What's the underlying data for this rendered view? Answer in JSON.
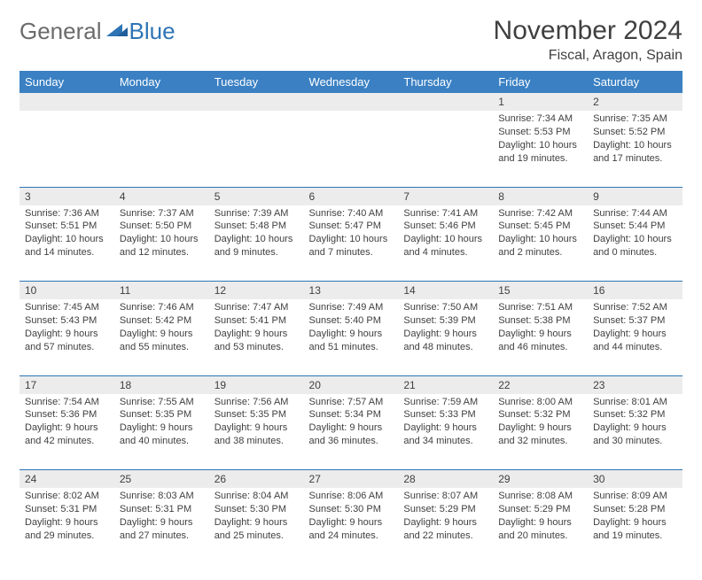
{
  "logo": {
    "text1": "General",
    "text2": "Blue"
  },
  "title": "November 2024",
  "location": "Fiscal, Aragon, Spain",
  "colors": {
    "header_bg": "#3a80c3",
    "header_text": "#ffffff",
    "border": "#2e74b5",
    "daynum_bg": "#ececec",
    "text": "#404040",
    "logo_gray": "#6b6b6b",
    "logo_blue": "#2e74b5"
  },
  "day_headers": [
    "Sunday",
    "Monday",
    "Tuesday",
    "Wednesday",
    "Thursday",
    "Friday",
    "Saturday"
  ],
  "weeks": [
    {
      "nums": [
        "",
        "",
        "",
        "",
        "",
        "1",
        "2"
      ],
      "cells": [
        {},
        {},
        {},
        {},
        {},
        {
          "sunrise": "Sunrise: 7:34 AM",
          "sunset": "Sunset: 5:53 PM",
          "day1": "Daylight: 10 hours",
          "day2": "and 19 minutes."
        },
        {
          "sunrise": "Sunrise: 7:35 AM",
          "sunset": "Sunset: 5:52 PM",
          "day1": "Daylight: 10 hours",
          "day2": "and 17 minutes."
        }
      ]
    },
    {
      "nums": [
        "3",
        "4",
        "5",
        "6",
        "7",
        "8",
        "9"
      ],
      "cells": [
        {
          "sunrise": "Sunrise: 7:36 AM",
          "sunset": "Sunset: 5:51 PM",
          "day1": "Daylight: 10 hours",
          "day2": "and 14 minutes."
        },
        {
          "sunrise": "Sunrise: 7:37 AM",
          "sunset": "Sunset: 5:50 PM",
          "day1": "Daylight: 10 hours",
          "day2": "and 12 minutes."
        },
        {
          "sunrise": "Sunrise: 7:39 AM",
          "sunset": "Sunset: 5:48 PM",
          "day1": "Daylight: 10 hours",
          "day2": "and 9 minutes."
        },
        {
          "sunrise": "Sunrise: 7:40 AM",
          "sunset": "Sunset: 5:47 PM",
          "day1": "Daylight: 10 hours",
          "day2": "and 7 minutes."
        },
        {
          "sunrise": "Sunrise: 7:41 AM",
          "sunset": "Sunset: 5:46 PM",
          "day1": "Daylight: 10 hours",
          "day2": "and 4 minutes."
        },
        {
          "sunrise": "Sunrise: 7:42 AM",
          "sunset": "Sunset: 5:45 PM",
          "day1": "Daylight: 10 hours",
          "day2": "and 2 minutes."
        },
        {
          "sunrise": "Sunrise: 7:44 AM",
          "sunset": "Sunset: 5:44 PM",
          "day1": "Daylight: 10 hours",
          "day2": "and 0 minutes."
        }
      ]
    },
    {
      "nums": [
        "10",
        "11",
        "12",
        "13",
        "14",
        "15",
        "16"
      ],
      "cells": [
        {
          "sunrise": "Sunrise: 7:45 AM",
          "sunset": "Sunset: 5:43 PM",
          "day1": "Daylight: 9 hours",
          "day2": "and 57 minutes."
        },
        {
          "sunrise": "Sunrise: 7:46 AM",
          "sunset": "Sunset: 5:42 PM",
          "day1": "Daylight: 9 hours",
          "day2": "and 55 minutes."
        },
        {
          "sunrise": "Sunrise: 7:47 AM",
          "sunset": "Sunset: 5:41 PM",
          "day1": "Daylight: 9 hours",
          "day2": "and 53 minutes."
        },
        {
          "sunrise": "Sunrise: 7:49 AM",
          "sunset": "Sunset: 5:40 PM",
          "day1": "Daylight: 9 hours",
          "day2": "and 51 minutes."
        },
        {
          "sunrise": "Sunrise: 7:50 AM",
          "sunset": "Sunset: 5:39 PM",
          "day1": "Daylight: 9 hours",
          "day2": "and 48 minutes."
        },
        {
          "sunrise": "Sunrise: 7:51 AM",
          "sunset": "Sunset: 5:38 PM",
          "day1": "Daylight: 9 hours",
          "day2": "and 46 minutes."
        },
        {
          "sunrise": "Sunrise: 7:52 AM",
          "sunset": "Sunset: 5:37 PM",
          "day1": "Daylight: 9 hours",
          "day2": "and 44 minutes."
        }
      ]
    },
    {
      "nums": [
        "17",
        "18",
        "19",
        "20",
        "21",
        "22",
        "23"
      ],
      "cells": [
        {
          "sunrise": "Sunrise: 7:54 AM",
          "sunset": "Sunset: 5:36 PM",
          "day1": "Daylight: 9 hours",
          "day2": "and 42 minutes."
        },
        {
          "sunrise": "Sunrise: 7:55 AM",
          "sunset": "Sunset: 5:35 PM",
          "day1": "Daylight: 9 hours",
          "day2": "and 40 minutes."
        },
        {
          "sunrise": "Sunrise: 7:56 AM",
          "sunset": "Sunset: 5:35 PM",
          "day1": "Daylight: 9 hours",
          "day2": "and 38 minutes."
        },
        {
          "sunrise": "Sunrise: 7:57 AM",
          "sunset": "Sunset: 5:34 PM",
          "day1": "Daylight: 9 hours",
          "day2": "and 36 minutes."
        },
        {
          "sunrise": "Sunrise: 7:59 AM",
          "sunset": "Sunset: 5:33 PM",
          "day1": "Daylight: 9 hours",
          "day2": "and 34 minutes."
        },
        {
          "sunrise": "Sunrise: 8:00 AM",
          "sunset": "Sunset: 5:32 PM",
          "day1": "Daylight: 9 hours",
          "day2": "and 32 minutes."
        },
        {
          "sunrise": "Sunrise: 8:01 AM",
          "sunset": "Sunset: 5:32 PM",
          "day1": "Daylight: 9 hours",
          "day2": "and 30 minutes."
        }
      ]
    },
    {
      "nums": [
        "24",
        "25",
        "26",
        "27",
        "28",
        "29",
        "30"
      ],
      "cells": [
        {
          "sunrise": "Sunrise: 8:02 AM",
          "sunset": "Sunset: 5:31 PM",
          "day1": "Daylight: 9 hours",
          "day2": "and 29 minutes."
        },
        {
          "sunrise": "Sunrise: 8:03 AM",
          "sunset": "Sunset: 5:31 PM",
          "day1": "Daylight: 9 hours",
          "day2": "and 27 minutes."
        },
        {
          "sunrise": "Sunrise: 8:04 AM",
          "sunset": "Sunset: 5:30 PM",
          "day1": "Daylight: 9 hours",
          "day2": "and 25 minutes."
        },
        {
          "sunrise": "Sunrise: 8:06 AM",
          "sunset": "Sunset: 5:30 PM",
          "day1": "Daylight: 9 hours",
          "day2": "and 24 minutes."
        },
        {
          "sunrise": "Sunrise: 8:07 AM",
          "sunset": "Sunset: 5:29 PM",
          "day1": "Daylight: 9 hours",
          "day2": "and 22 minutes."
        },
        {
          "sunrise": "Sunrise: 8:08 AM",
          "sunset": "Sunset: 5:29 PM",
          "day1": "Daylight: 9 hours",
          "day2": "and 20 minutes."
        },
        {
          "sunrise": "Sunrise: 8:09 AM",
          "sunset": "Sunset: 5:28 PM",
          "day1": "Daylight: 9 hours",
          "day2": "and 19 minutes."
        }
      ]
    }
  ]
}
